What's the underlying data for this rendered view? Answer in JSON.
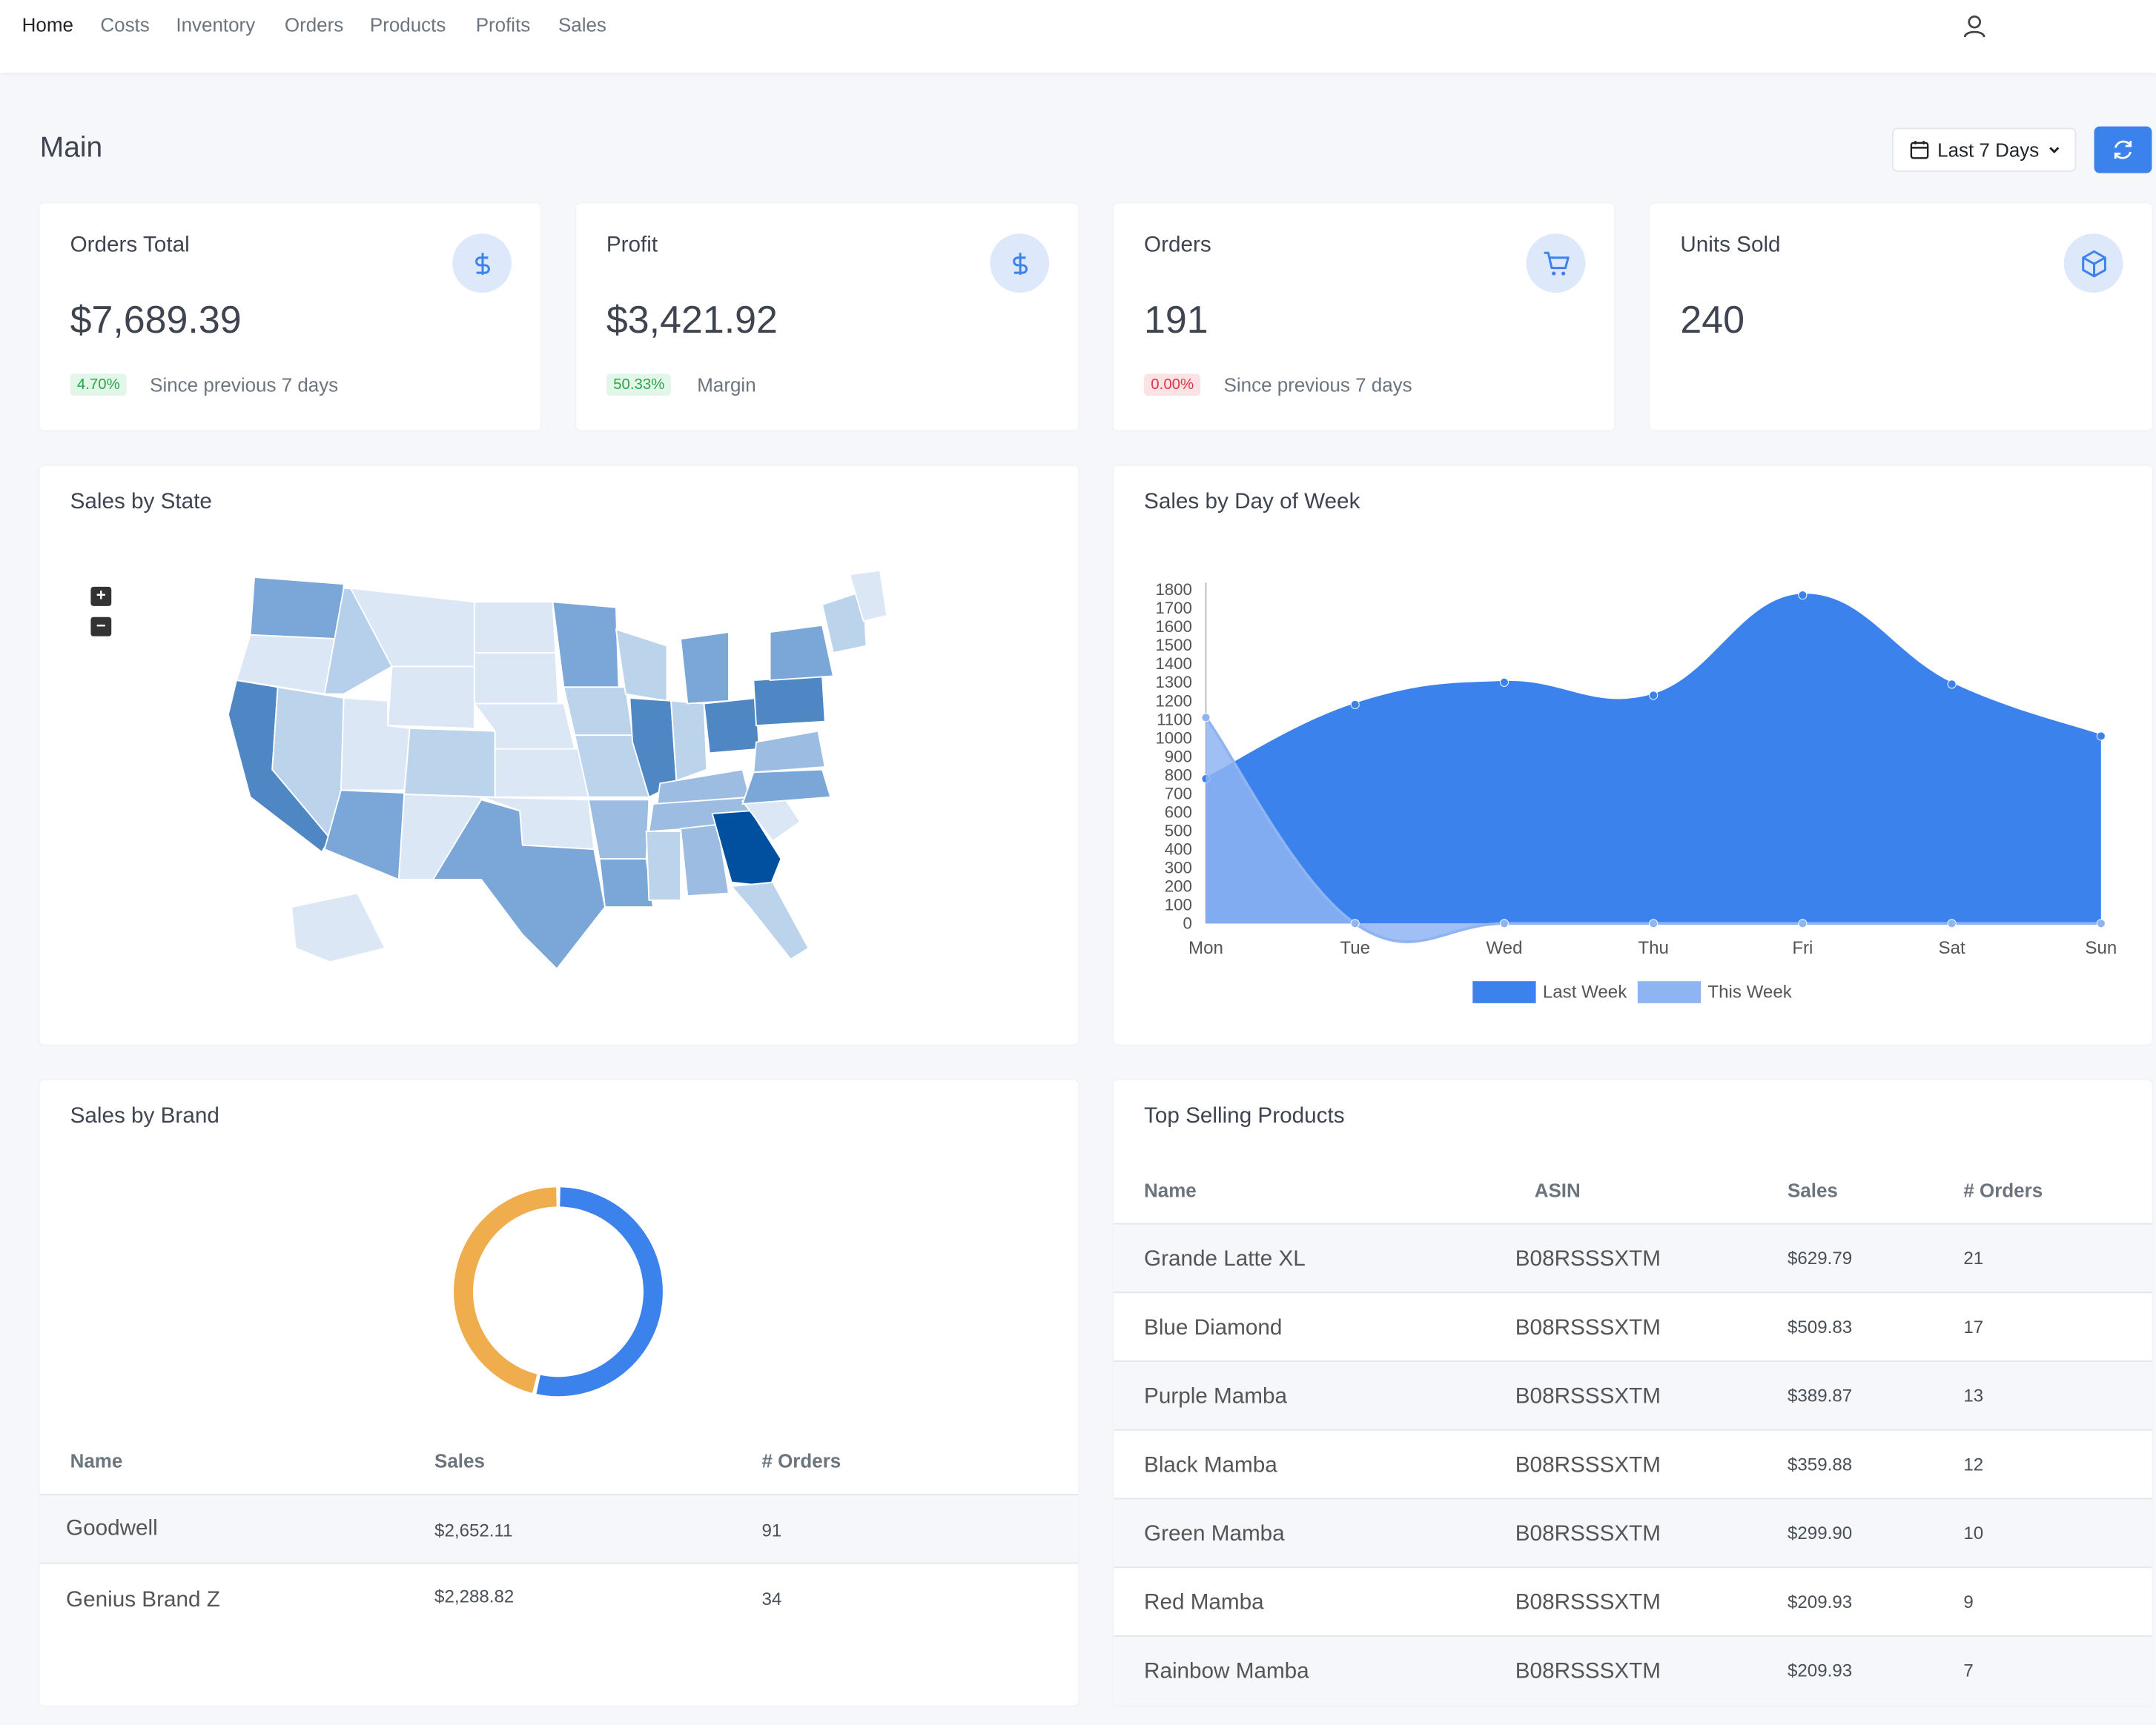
{
  "nav": {
    "items": [
      "Home",
      "Costs",
      "Inventory",
      "Orders",
      "Products",
      "Profits",
      "Sales"
    ]
  },
  "icons": {
    "user": "user-icon",
    "calendar": "calendar-icon",
    "refresh": "refresh-icon",
    "dollar": "dollar-icon",
    "cart": "cart-icon",
    "box": "box-icon"
  },
  "header": {
    "title": "Main",
    "range_label": "Last 7 Days"
  },
  "stats": [
    {
      "title": "Orders Total",
      "value": "$7,689.39",
      "badge": "4.70%",
      "badge_color": "green",
      "note": "Since previous 7 days"
    },
    {
      "title": "Profit",
      "value": "$3,421.92",
      "badge": "50.33%",
      "badge_color": "green",
      "note": "Margin"
    },
    {
      "title": "Orders",
      "value": "191",
      "badge": "0.00%",
      "badge_color": "red",
      "note": "Since previous 7 days"
    },
    {
      "title": "Units Sold",
      "value": "240",
      "badge": null,
      "badge_color": null,
      "note": null
    }
  ],
  "map_card": {
    "title": "Sales by State",
    "zoom_in": "+",
    "zoom_out": "−"
  },
  "chart_card": {
    "title": "Sales by Day of Week"
  },
  "chart_data": {
    "type": "area",
    "x": [
      "Mon",
      "Tue",
      "Wed",
      "Thu",
      "Fri",
      "Sat",
      "Sun"
    ],
    "yticks": [
      "1800",
      "1700",
      "1600",
      "1500",
      "1400",
      "1300",
      "1200",
      "1100",
      "1000",
      "900",
      "800",
      "700",
      "600",
      "500",
      "400",
      "300",
      "200",
      "100",
      "0"
    ],
    "ylim": [
      0,
      1800
    ],
    "series": [
      {
        "name": "Last Week",
        "color": "#3b82ec",
        "values": [
          780,
          1180,
          1300,
          1230,
          1770,
          1290,
          1010
        ]
      },
      {
        "name": "This Week",
        "color": "#8fb4f2",
        "values": [
          1110,
          0,
          0,
          0,
          0,
          0,
          0
        ]
      }
    ],
    "legend": "bottom"
  },
  "brand_card": {
    "title": "Sales by Brand",
    "donut": [
      {
        "name": "Goodwell",
        "value": 2652.11,
        "color": "#3b82ec"
      },
      {
        "name": "Genius Brand Z",
        "value": 2288.82,
        "color": "#f0ad4e"
      }
    ],
    "headers": [
      "Name",
      "Sales",
      "# Orders"
    ],
    "rows": [
      {
        "name": "Goodwell",
        "sales": "$2,652.11",
        "orders": "91"
      },
      {
        "name": "Genius Brand Z",
        "sales": "$2,288.82",
        "orders": "34"
      }
    ]
  },
  "products_card": {
    "title": "Top Selling Products",
    "headers": [
      "Name",
      "ASIN",
      "Sales",
      "# Orders"
    ],
    "rows": [
      {
        "name": "Grande Latte XL",
        "asin": "B08RSSSXTM",
        "sales": "$629.79",
        "orders": "21"
      },
      {
        "name": "Blue Diamond",
        "asin": "B08RSSSXTM",
        "sales": "$509.83",
        "orders": "17"
      },
      {
        "name": "Purple Mamba",
        "asin": "B08RSSSXTM",
        "sales": "$389.87",
        "orders": "13"
      },
      {
        "name": "Black Mamba",
        "asin": "B08RSSSXTM",
        "sales": "$359.88",
        "orders": "12"
      },
      {
        "name": "Green Mamba",
        "asin": "B08RSSSXTM",
        "sales": "$299.90",
        "orders": "10"
      },
      {
        "name": "Red Mamba",
        "asin": "B08RSSSXTM",
        "sales": "$209.93",
        "orders": "9"
      },
      {
        "name": "Rainbow Mamba",
        "asin": "B08RSSSXTM",
        "sales": "$209.93",
        "orders": "7"
      }
    ]
  }
}
